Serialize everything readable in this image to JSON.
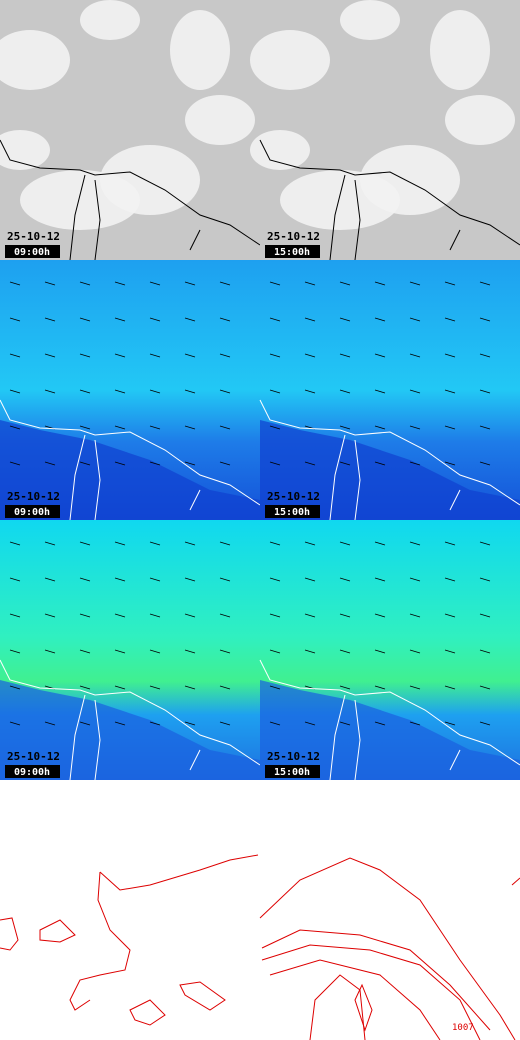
{
  "panels": [
    {
      "date": "25-10-12",
      "time": "09:00h"
    },
    {
      "date": "25-10-12",
      "time": "15:00h"
    },
    {
      "date": "25-10-12",
      "time": "09:00h"
    },
    {
      "date": "25-10-12",
      "time": "15:00h"
    },
    {
      "date": "25-10-12",
      "time": "09:00h"
    },
    {
      "date": "25-10-12",
      "time": "15:00h"
    }
  ],
  "contour_label": "1007"
}
